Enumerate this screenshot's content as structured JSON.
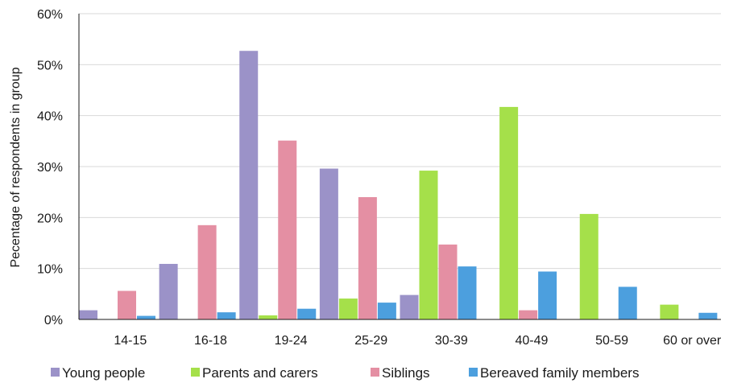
{
  "chart_data": {
    "type": "bar",
    "ylabel": "Pecentage of respondents in group",
    "ylim": [
      0,
      60
    ],
    "yticks": [
      "0%",
      "10%",
      "20%",
      "30%",
      "40%",
      "50%",
      "60%"
    ],
    "grid": true,
    "legend_position": "bottom",
    "categories": [
      "14-15",
      "16-18",
      "19-24",
      "25-29",
      "30-39",
      "40-49",
      "50-59",
      "60 or over"
    ],
    "series": [
      {
        "name": "Young people",
        "color": "#9b92c8",
        "values": [
          1.8,
          10.9,
          52.7,
          29.6,
          4.8,
          0,
          0,
          0
        ]
      },
      {
        "name": "Parents and carers",
        "color": "#a5e04a",
        "values": [
          0,
          0,
          0.8,
          4.1,
          29.2,
          41.7,
          20.7,
          2.9
        ]
      },
      {
        "name": "Siblings",
        "color": "#e48fa3",
        "values": [
          5.6,
          18.5,
          35.1,
          24.0,
          14.7,
          1.8,
          0,
          0
        ]
      },
      {
        "name": "Bereaved family members",
        "color": "#4c9fde",
        "values": [
          0.7,
          1.4,
          2.1,
          3.3,
          10.4,
          9.4,
          6.4,
          1.3
        ]
      }
    ]
  }
}
